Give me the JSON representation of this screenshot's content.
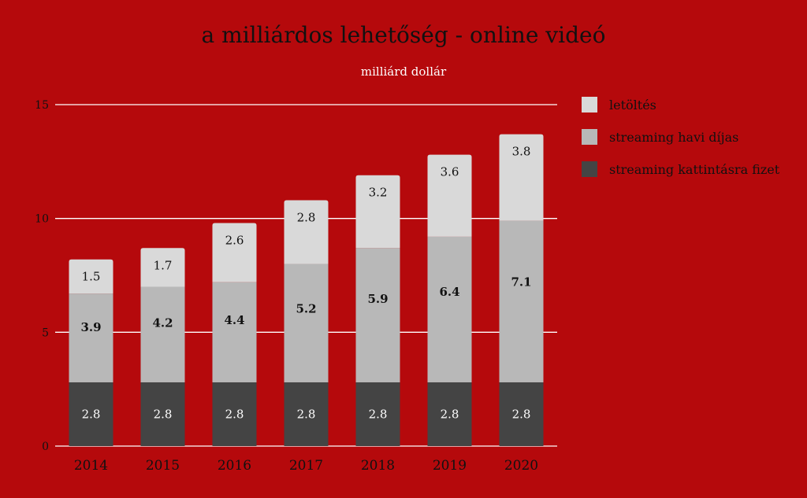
{
  "chart_data": {
    "type": "bar",
    "stacked": true,
    "title": "a milliárdos lehetőség - online videó",
    "subtitle": "milliárd dollár",
    "categories": [
      "2014",
      "2015",
      "2016",
      "2017",
      "2018",
      "2019",
      "2020"
    ],
    "ylim": [
      0,
      15
    ],
    "yticks": [
      0,
      5,
      10,
      15
    ],
    "grid": true,
    "legend_position": "right",
    "series": [
      {
        "name": "streaming kattintásra fizet",
        "color": "#444444",
        "label_color": "#ffffff",
        "label_bold": false,
        "values": [
          2.8,
          2.8,
          2.8,
          2.8,
          2.8,
          2.8,
          2.8
        ]
      },
      {
        "name": "streaming havi díjas",
        "color": "#b8b8b8",
        "label_color": "#111111",
        "label_bold": true,
        "values": [
          3.9,
          4.2,
          4.4,
          5.2,
          5.9,
          6.4,
          7.1
        ]
      },
      {
        "name": "letöltés",
        "color": "#d9d9d9",
        "label_color": "#111111",
        "label_bold": false,
        "values": [
          1.5,
          1.7,
          2.6,
          2.8,
          3.2,
          3.6,
          3.8
        ]
      }
    ]
  }
}
